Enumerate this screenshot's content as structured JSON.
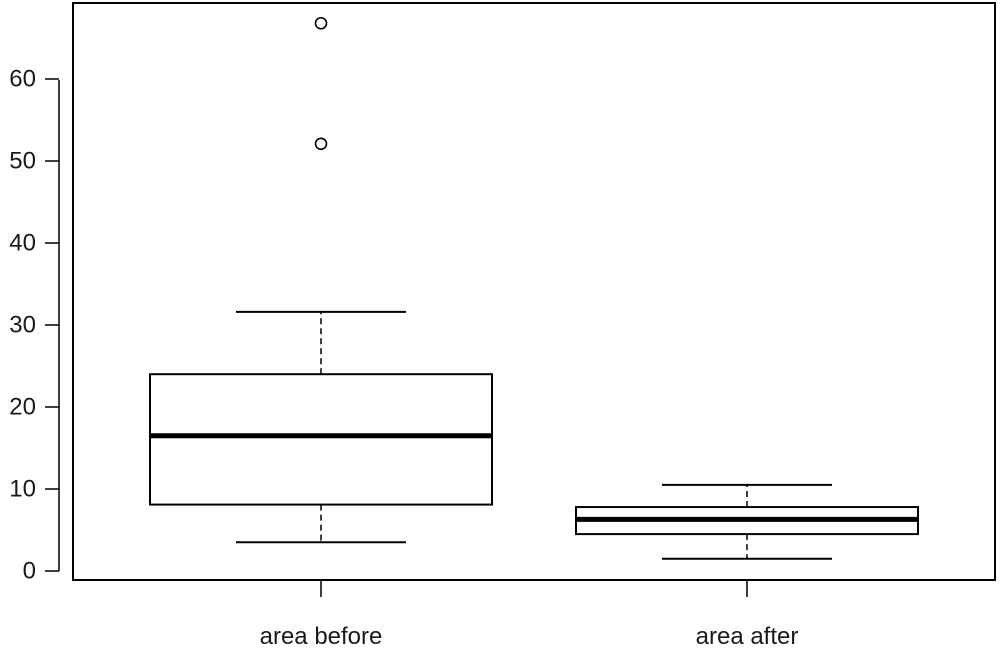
{
  "chart_data": {
    "type": "boxplot",
    "title": "",
    "xlabel": "",
    "ylabel": "",
    "ylim": [
      -1,
      70
    ],
    "yticks": [
      0,
      10,
      20,
      30,
      40,
      50,
      60
    ],
    "tick_labels": [
      "0",
      "10",
      "20",
      "30",
      "40",
      "50",
      "60"
    ],
    "grid": false,
    "categories": [
      "area before",
      "area after"
    ],
    "boxes": [
      {
        "category": "area before",
        "whisker_low": 3.5,
        "q1": 8.1,
        "median": 16.5,
        "q3": 24.0,
        "whisker_high": 31.6,
        "outliers": [
          52.1,
          66.8
        ]
      },
      {
        "category": "area after",
        "whisker_low": 1.5,
        "q1": 4.5,
        "median": 6.3,
        "q3": 7.8,
        "whisker_high": 10.5,
        "outliers": []
      }
    ]
  }
}
